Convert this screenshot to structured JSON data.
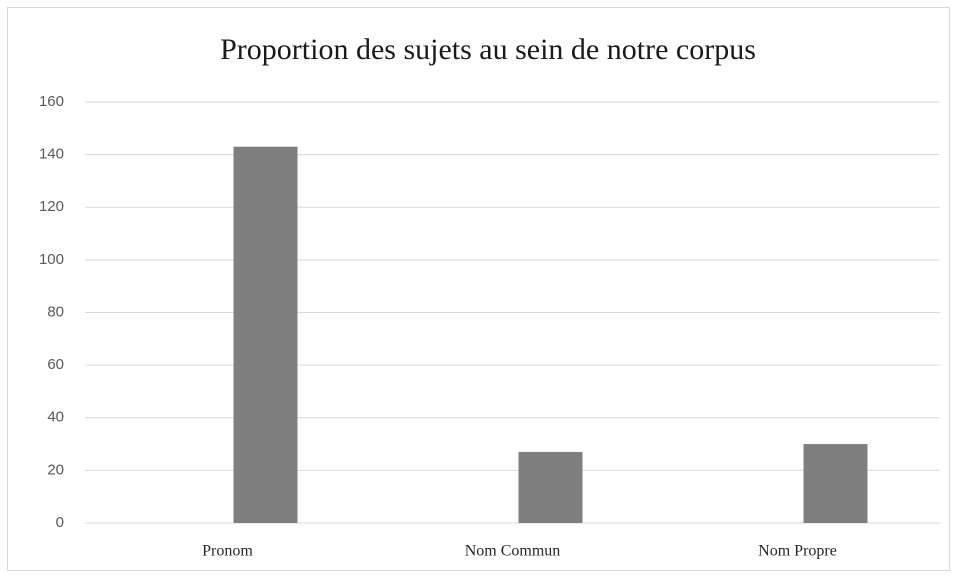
{
  "chart_data": {
    "type": "bar",
    "title": "Proportion des sujets au sein de notre corpus",
    "categories": [
      "Pronom",
      "Nom Commun",
      "Nom Propre"
    ],
    "values": [
      143,
      27,
      30
    ],
    "color": "#7f7f7f",
    "ylim": [
      0,
      160
    ],
    "yticks": [
      0,
      20,
      40,
      60,
      80,
      100,
      120,
      140,
      160
    ],
    "grid": true
  }
}
